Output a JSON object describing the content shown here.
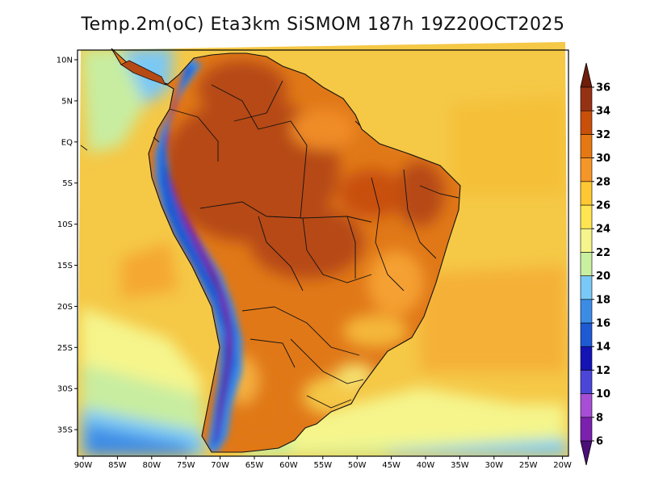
{
  "title": "Temp.2m(oC) Eta3km SiSMOM 187h 19Z20OCT2025",
  "chart_data": {
    "type": "heatmap",
    "title": "Temp.2m(oC) Eta3km SiSMOM 187h 19Z20OCT2025",
    "xlabel": "",
    "ylabel": "",
    "x_ticks": [
      "90W",
      "85W",
      "80W",
      "75W",
      "70W",
      "65W",
      "60W",
      "55W",
      "50W",
      "45W",
      "40W",
      "35W",
      "30W",
      "25W",
      "20W"
    ],
    "y_ticks": [
      "10N",
      "5N",
      "EQ",
      "5S",
      "10S",
      "15S",
      "20S",
      "25S",
      "30S",
      "35S"
    ],
    "lon_range": [
      -91,
      -19
    ],
    "lat_range": [
      -38,
      11
    ],
    "colorbar": {
      "labels": [
        "6",
        "8",
        "10",
        "12",
        "14",
        "16",
        "18",
        "20",
        "22",
        "24",
        "26",
        "28",
        "30",
        "32",
        "34",
        "36"
      ],
      "colors": [
        "#4b0f7a",
        "#7a21ad",
        "#a64fd6",
        "#4b46d8",
        "#1414b4",
        "#1e5ad2",
        "#3c8ce6",
        "#7ac8f5",
        "#c8f0a0",
        "#f5f58c",
        "#ffe650",
        "#ffc832",
        "#f59628",
        "#e67814",
        "#c8500a",
        "#963214",
        "#6e1e0a"
      ]
    },
    "annotations": []
  }
}
